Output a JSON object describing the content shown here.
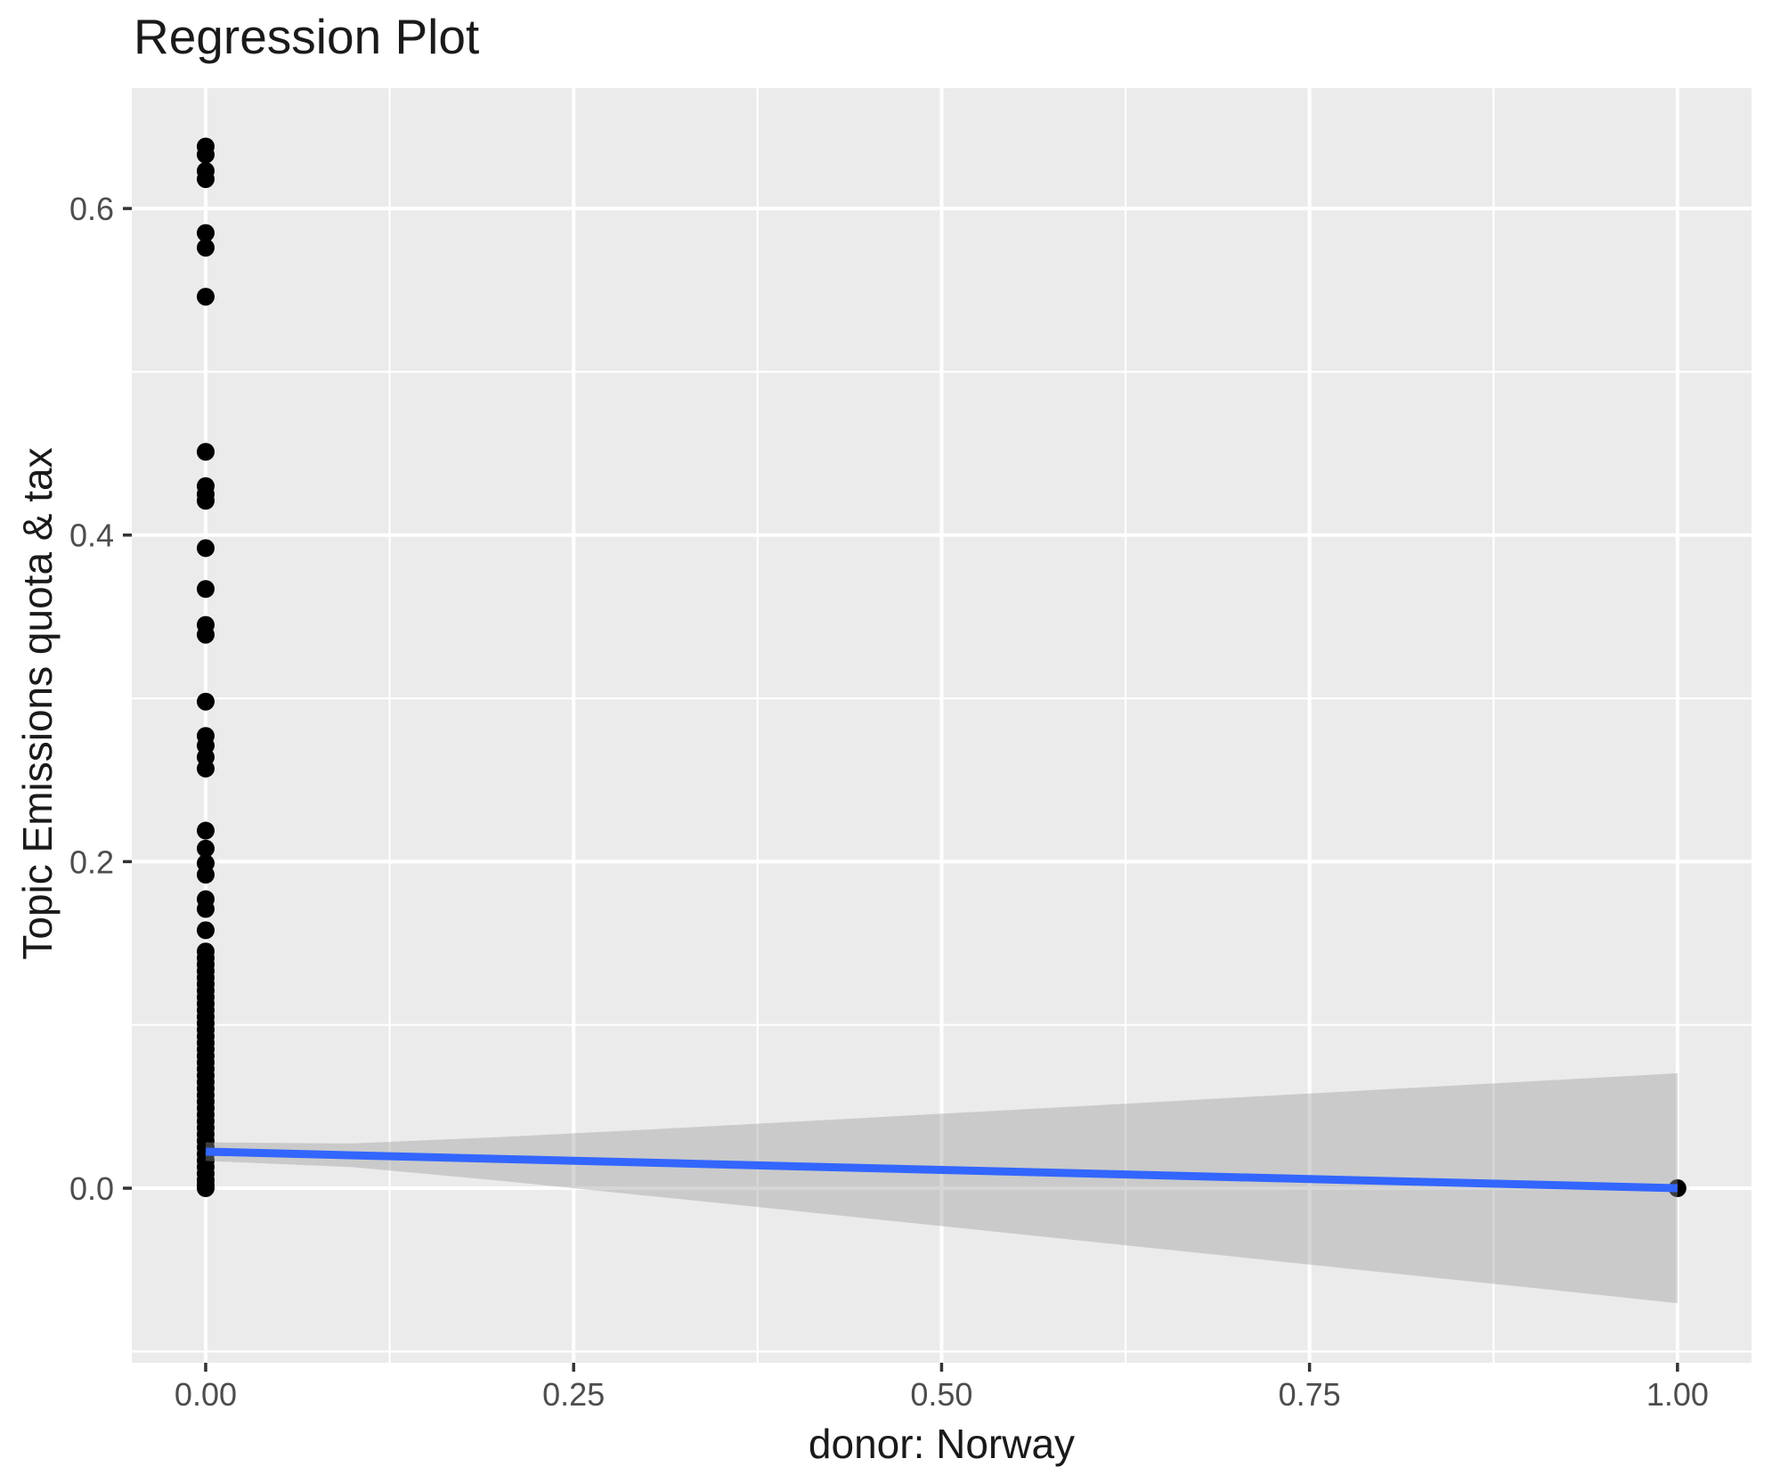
{
  "figure": {
    "title": "Regression Plot",
    "x_axis_label": "donor: Norway",
    "y_axis_label": "Topic Emissions quota & tax"
  },
  "chart_data": {
    "type": "scatter",
    "title": "Regression Plot",
    "xlabel": "donor: Norway",
    "ylabel": "Topic Emissions quota & tax",
    "grid": true,
    "legend": "none",
    "xlim": [
      -0.0502,
      1.0503
    ],
    "ylim": [
      -0.1069,
      0.6737
    ],
    "x_major_ticks": [
      0,
      0.25,
      0.5,
      0.75,
      1.0
    ],
    "x_tick_labels": [
      "0.00",
      "0.25",
      "0.50",
      "0.75",
      "1.00"
    ],
    "x_minor_ticks": [
      0.125,
      0.375,
      0.625,
      0.875
    ],
    "y_major_ticks": [
      0,
      0.2,
      0.4,
      0.6
    ],
    "y_tick_labels": [
      "0.0",
      "0.2",
      "0.4",
      "0.6"
    ],
    "y_minor_ticks": [
      -0.1,
      0.1,
      0.3,
      0.5
    ],
    "points_x0_y": [
      0.638,
      0.633,
      0.623,
      0.618,
      0.585,
      0.576,
      0.546,
      0.451,
      0.43,
      0.425,
      0.421,
      0.392,
      0.367,
      0.345,
      0.339,
      0.298,
      0.277,
      0.271,
      0.264,
      0.257,
      0.219,
      0.208,
      0.199,
      0.192,
      0.177,
      0.171,
      0.158,
      0.145,
      0.141,
      0.137,
      0.133,
      0.129,
      0.125,
      0.121,
      0.117,
      0.113,
      0.109,
      0.105,
      0.101,
      0.097,
      0.093,
      0.089,
      0.085,
      0.081,
      0.077,
      0.073,
      0.069,
      0.065,
      0.061,
      0.057,
      0.053,
      0.049,
      0.045,
      0.041,
      0.037,
      0.033,
      0.029,
      0.025,
      0.021,
      0.017,
      0.013,
      0.009,
      0.005,
      0.002,
      0.0
    ],
    "points_x1_y": [
      0.0
    ],
    "regression_line": {
      "x": [
        0,
        1
      ],
      "y": [
        0.0224,
        0.0
      ]
    },
    "confidence_band": {
      "x": [
        0,
        0.1,
        0.2,
        0.3,
        0.4,
        0.5,
        0.6,
        0.7,
        0.8,
        0.9,
        1.0
      ],
      "upper": [
        0.0281,
        0.0274,
        0.0313,
        0.0359,
        0.0407,
        0.0456,
        0.0505,
        0.0555,
        0.0605,
        0.0654,
        0.0704
      ],
      "lower": [
        0.0167,
        0.0129,
        0.0046,
        -0.0046,
        -0.0138,
        -0.0232,
        -0.0326,
        -0.042,
        -0.0515,
        -0.0609,
        -0.0704
      ]
    },
    "colors": {
      "panel_background": "#EBEBEB",
      "gridline": "#FFFFFF",
      "point": "#000000",
      "line": "#3366FF",
      "band": "rgba(153,153,153,0.4)",
      "tick_mark": "#333333",
      "tick_text": "#4D4D4D",
      "title_text": "#1A1A1A"
    }
  }
}
